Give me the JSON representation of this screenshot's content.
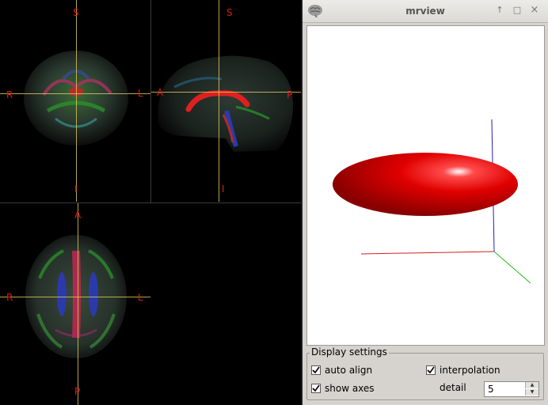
{
  "viewer": {
    "coronal": {
      "top": "S",
      "bottom": "I",
      "left": "R",
      "right": "L"
    },
    "sagittal": {
      "top": "S",
      "bottom": "I",
      "left": "A",
      "right": "P"
    },
    "axial": {
      "top": "A",
      "bottom": "P",
      "left": "R",
      "right": "L"
    }
  },
  "window": {
    "title": "mrview",
    "buttons": [
      "↑",
      "□",
      "×"
    ],
    "icon": "brain-icon"
  },
  "settings": {
    "group_title": "Display settings",
    "auto_align": {
      "label": "auto align",
      "checked": true
    },
    "interpolation": {
      "label": "interpolation",
      "checked": true
    },
    "show_axes": {
      "label": "show axes",
      "checked": true
    },
    "detail": {
      "label": "detail",
      "value": "5"
    }
  },
  "colors": {
    "orientation_label": "#e01818",
    "crosshair": "#d8c25a",
    "ellipsoid": "#dd0000"
  }
}
